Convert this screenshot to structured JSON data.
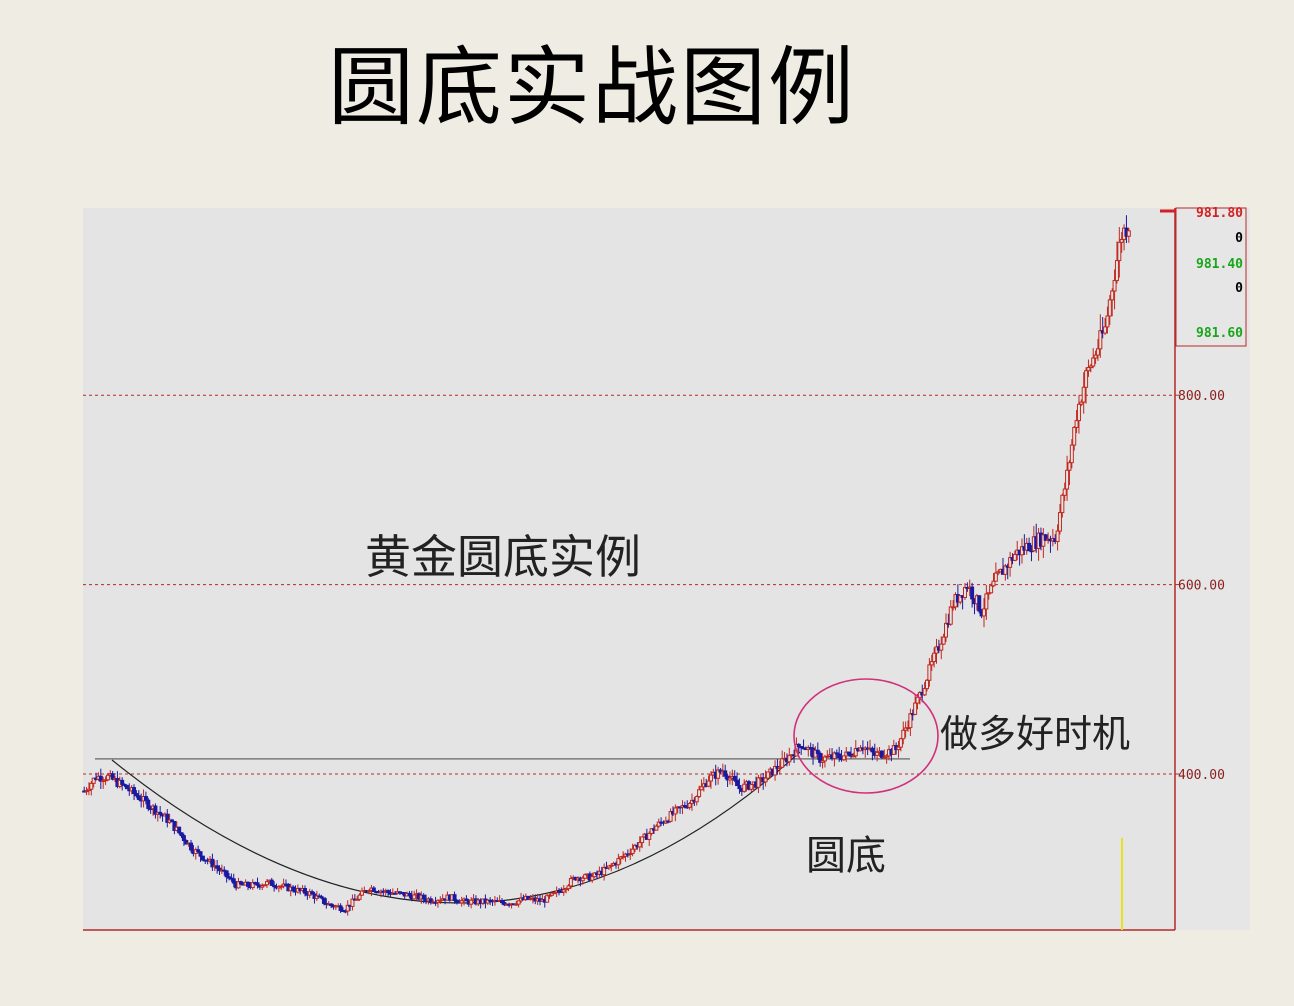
{
  "title": "圆底实战图例",
  "colors": {
    "background": "#efece3",
    "plot": "#e4e4e4",
    "up": "#c0281e",
    "down": "#1a1aa0",
    "grid": "#b42a2a",
    "circle": "#d0307c"
  },
  "annotations": {
    "main": "黄金圆底实例",
    "buy": "做多好时机",
    "bottom": "圆底"
  },
  "chart_data": {
    "type": "candlestick",
    "title": "",
    "xlabel": "",
    "ylabel": "",
    "ylim": [
      230,
      995
    ],
    "gridlines": [
      400,
      600,
      800
    ],
    "y_ticks": [
      "800.00",
      "600.00",
      "400.00"
    ],
    "top_readout": [
      "981.80",
      "0",
      "981.40",
      "0",
      "981.60"
    ],
    "readout_colors": [
      "#d42020",
      "#000000",
      "#1aa51a",
      "#000000",
      "#1aa51a"
    ],
    "resistance_level": 416,
    "current_price": 981.6,
    "anchors": [
      [
        0,
        382
      ],
      [
        5,
        397
      ],
      [
        10,
        397
      ],
      [
        18,
        385
      ],
      [
        26,
        370
      ],
      [
        36,
        350
      ],
      [
        46,
        320
      ],
      [
        55,
        303
      ],
      [
        64,
        283
      ],
      [
        70,
        282
      ],
      [
        78,
        285
      ],
      [
        87,
        279
      ],
      [
        95,
        274
      ],
      [
        103,
        262
      ],
      [
        110,
        258
      ],
      [
        120,
        280
      ],
      [
        128,
        275
      ],
      [
        137,
        272
      ],
      [
        146,
        267
      ],
      [
        154,
        270
      ],
      [
        160,
        265
      ],
      [
        170,
        265
      ],
      [
        180,
        264
      ],
      [
        186,
        268
      ],
      [
        193,
        266
      ],
      [
        199,
        274
      ],
      [
        207,
        291
      ],
      [
        214,
        291
      ],
      [
        221,
        301
      ],
      [
        228,
        315
      ],
      [
        235,
        330
      ],
      [
        241,
        345
      ],
      [
        248,
        358
      ],
      [
        256,
        372
      ],
      [
        263,
        395
      ],
      [
        269,
        404
      ],
      [
        276,
        385
      ],
      [
        285,
        392
      ],
      [
        295,
        414
      ],
      [
        302,
        432
      ],
      [
        310,
        416
      ],
      [
        316,
        418
      ],
      [
        322,
        420
      ],
      [
        327,
        431
      ],
      [
        333,
        420
      ],
      [
        342,
        426
      ],
      [
        352,
        483
      ],
      [
        360,
        535
      ],
      [
        366,
        580
      ],
      [
        372,
        600
      ],
      [
        378,
        572
      ],
      [
        384,
        605
      ],
      [
        392,
        632
      ],
      [
        398,
        642
      ],
      [
        404,
        650
      ],
      [
        409,
        650
      ],
      [
        414,
        715
      ],
      [
        418,
        780
      ],
      [
        422,
        820
      ],
      [
        426,
        845
      ],
      [
        430,
        870
      ],
      [
        434,
        930
      ],
      [
        437,
        970
      ],
      [
        440,
        982
      ]
    ]
  }
}
